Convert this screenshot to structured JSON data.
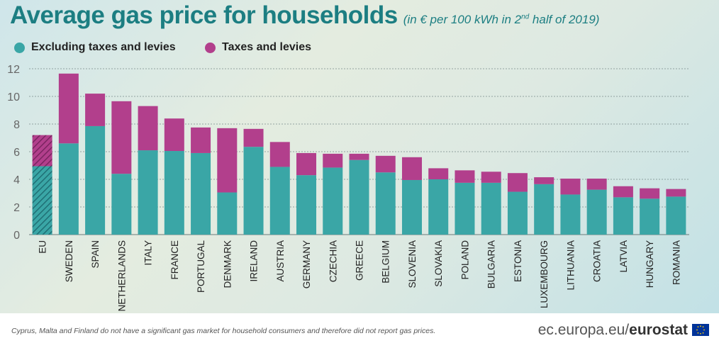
{
  "title": "Average gas price for households",
  "subtitle_prefix": "(in € per 100 kWh in 2",
  "subtitle_sup": "nd",
  "subtitle_suffix": " half of 2019)",
  "legend": [
    {
      "label": "Excluding taxes and levies",
      "color": "#3aa6a6"
    },
    {
      "label": "Taxes and levies",
      "color": "#b23f8c"
    }
  ],
  "footnote": "Cyprus, Malta and Finland do not have a significant gas market for household consumers and therefore did not report gas prices.",
  "brand": {
    "prefix": "ec.europa.eu/",
    "bold": "eurostat"
  },
  "chart_data": {
    "type": "bar",
    "stacked": true,
    "categories": [
      "EU",
      "SWEDEN",
      "SPAIN",
      "NETHERLANDS",
      "ITALY",
      "FRANCE",
      "PORTUGAL",
      "DENMARK",
      "IRELAND",
      "AUSTRIA",
      "GERMANY",
      "CZECHIA",
      "GREECE",
      "BELGIUM",
      "SLOVENIA",
      "SLOVAKIA",
      "POLAND",
      "BULGARIA",
      "ESTONIA",
      "LUXEMBOURG",
      "LITHUANIA",
      "CROATIA",
      "LATVIA",
      "HUNGARY",
      "ROMANIA"
    ],
    "series": [
      {
        "name": "Excluding taxes and levies",
        "color": "#3aa6a6",
        "values": [
          4.95,
          6.6,
          7.85,
          4.4,
          6.1,
          6.05,
          5.9,
          3.05,
          6.35,
          4.9,
          4.3,
          4.85,
          5.4,
          4.5,
          3.95,
          4.0,
          3.75,
          3.75,
          3.1,
          3.65,
          2.9,
          3.25,
          2.7,
          2.6,
          2.75
        ]
      },
      {
        "name": "Taxes and levies",
        "color": "#b23f8c",
        "values": [
          2.25,
          5.05,
          2.35,
          5.25,
          3.2,
          2.35,
          1.85,
          4.65,
          1.3,
          1.8,
          1.6,
          1.0,
          0.45,
          1.2,
          1.65,
          0.8,
          0.9,
          0.8,
          1.35,
          0.5,
          1.15,
          0.8,
          0.8,
          0.75,
          0.55
        ]
      }
    ],
    "hatched_category": "EU",
    "ylim": [
      0,
      12
    ],
    "yticks": [
      "0",
      "2",
      "4",
      "6",
      "8",
      "10",
      "12"
    ],
    "grid": true,
    "legend_position": "top-left"
  }
}
